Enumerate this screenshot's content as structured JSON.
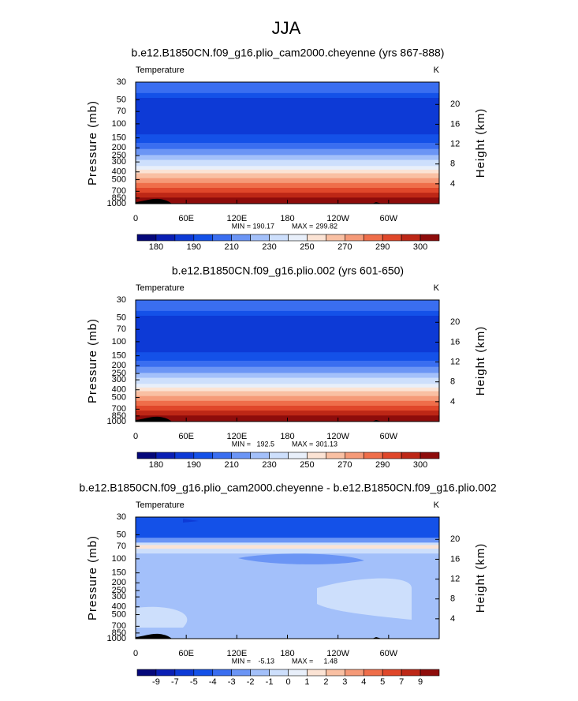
{
  "title": "JJA",
  "chart_data": [
    {
      "type": "contour",
      "title": "b.e12.B1850CN.f09_g16.plio_cam2000.cheyenne (yrs 867-888)",
      "field_label": "Temperature",
      "units": "K",
      "y_label": "Pressure (mb)",
      "y2_label": "Height (km)",
      "ylim": [
        1000,
        30
      ],
      "log_y": true,
      "yticks": [
        30,
        50,
        70,
        100,
        150,
        200,
        250,
        300,
        400,
        500,
        700,
        850,
        1000
      ],
      "y2lim": [
        0,
        24.5
      ],
      "y2ticks": [
        4,
        8,
        12,
        16,
        20
      ],
      "xlim": [
        0,
        360
      ],
      "xticks": [
        0,
        {
          "value": 60,
          "label": "60E"
        },
        {
          "value": 120,
          "label": "120E"
        },
        180,
        {
          "value": 240,
          "label": "120W"
        },
        {
          "value": 300,
          "label": "60W"
        }
      ],
      "min_label": "MIN =",
      "min": 190.17,
      "max_label": "MAX =",
      "max": 299.82,
      "colorbar": {
        "labels": [
          180,
          190,
          210,
          230,
          250,
          270,
          290,
          300
        ],
        "colors": [
          "#05087a",
          "#0a1fb4",
          "#0d3ad6",
          "#1451e8",
          "#3a6ef0",
          "#6b95f5",
          "#a3c0fa",
          "#cddffc",
          "#e8effa",
          "#fbe3d4",
          "#f9c0a3",
          "#f59a78",
          "#ef6e4a",
          "#e0472a",
          "#bd2716",
          "#8e0c0b"
        ]
      }
    },
    {
      "type": "contour",
      "title": "b.e12.B1850CN.f09_g16.plio.002 (yrs 601-650)",
      "field_label": "Temperature",
      "units": "K",
      "y_label": "Pressure (mb)",
      "y2_label": "Height (km)",
      "ylim": [
        1000,
        30
      ],
      "log_y": true,
      "yticks": [
        30,
        50,
        70,
        100,
        150,
        200,
        250,
        300,
        400,
        500,
        700,
        850,
        1000
      ],
      "y2lim": [
        0,
        24.5
      ],
      "y2ticks": [
        4,
        8,
        12,
        16,
        20
      ],
      "xlim": [
        0,
        360
      ],
      "xticks": [
        0,
        {
          "value": 60,
          "label": "60E"
        },
        {
          "value": 120,
          "label": "120E"
        },
        180,
        {
          "value": 240,
          "label": "120W"
        },
        {
          "value": 300,
          "label": "60W"
        }
      ],
      "min_label": "MIN =",
      "min": 192.5,
      "max_label": "MAX =",
      "max": 301.13,
      "colorbar": {
        "labels": [
          180,
          190,
          210,
          230,
          250,
          270,
          290,
          300
        ],
        "colors": [
          "#05087a",
          "#0a1fb4",
          "#0d3ad6",
          "#1451e8",
          "#3a6ef0",
          "#6b95f5",
          "#a3c0fa",
          "#cddffc",
          "#e8effa",
          "#fbe3d4",
          "#f9c0a3",
          "#f59a78",
          "#ef6e4a",
          "#e0472a",
          "#bd2716",
          "#8e0c0b"
        ]
      }
    },
    {
      "type": "contour",
      "title": "b.e12.B1850CN.f09_g16.plio_cam2000.cheyenne - b.e12.B1850CN.f09_g16.plio.002",
      "field_label": "Temperature",
      "units": "K",
      "y_label": "Pressure (mb)",
      "y2_label": "Height (km)",
      "ylim": [
        1000,
        30
      ],
      "log_y": true,
      "yticks": [
        30,
        50,
        70,
        100,
        150,
        200,
        250,
        300,
        400,
        500,
        700,
        850,
        1000
      ],
      "y2lim": [
        0,
        24.5
      ],
      "y2ticks": [
        4,
        8,
        12,
        16,
        20
      ],
      "xlim": [
        0,
        360
      ],
      "xticks": [
        0,
        {
          "value": 60,
          "label": "60E"
        },
        {
          "value": 120,
          "label": "120E"
        },
        180,
        {
          "value": 240,
          "label": "120W"
        },
        {
          "value": 300,
          "label": "60W"
        }
      ],
      "min_label": "MIN =",
      "min": -5.13,
      "max_label": "MAX =",
      "max": 1.48,
      "colorbar": {
        "labels": [
          -9,
          -7,
          -5,
          -4,
          -3,
          -2,
          -1,
          0,
          1,
          2,
          3,
          4,
          5,
          7,
          9
        ],
        "colors": [
          "#05087a",
          "#0a1fb4",
          "#0d3ad6",
          "#1451e8",
          "#3a6ef0",
          "#6b95f5",
          "#a3c0fa",
          "#cddffc",
          "#e8effa",
          "#fbe3d4",
          "#f9c0a3",
          "#f59a78",
          "#ef6e4a",
          "#e0472a",
          "#bd2716",
          "#8e0c0b"
        ]
      }
    }
  ]
}
